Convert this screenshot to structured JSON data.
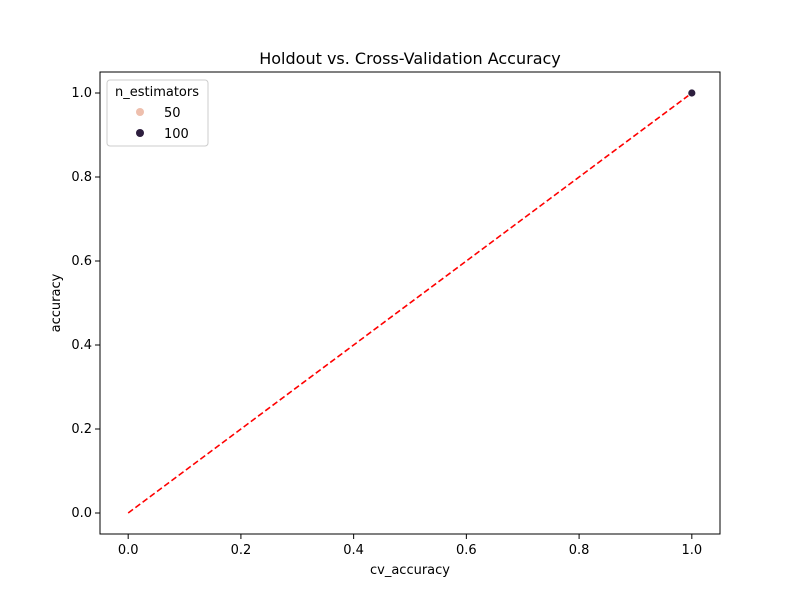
{
  "chart_data": {
    "type": "scatter",
    "title": "Holdout vs. Cross-Validation Accuracy",
    "xlabel": "cv_accuracy",
    "ylabel": "accuracy",
    "xlim": [
      -0.05,
      1.05
    ],
    "ylim": [
      -0.05,
      1.05
    ],
    "x_ticks": [
      0.0,
      0.2,
      0.4,
      0.6,
      0.8,
      1.0
    ],
    "y_ticks": [
      0.0,
      0.2,
      0.4,
      0.6,
      0.8,
      1.0
    ],
    "x_tick_labels": [
      "0.0",
      "0.2",
      "0.4",
      "0.6",
      "0.8",
      "1.0"
    ],
    "y_tick_labels": [
      "0.0",
      "0.2",
      "0.4",
      "0.6",
      "0.8",
      "1.0"
    ],
    "grid": false,
    "legend": {
      "title": "n_estimators",
      "placement": "top-left",
      "entries": [
        {
          "label": "50",
          "color": "#eebfad"
        },
        {
          "label": "100",
          "color": "#2d1e3e"
        }
      ]
    },
    "series": [
      {
        "name": "50",
        "color": "#eebfad",
        "points": [
          {
            "x": 1.0,
            "y": 1.0
          }
        ]
      },
      {
        "name": "100",
        "color": "#2d1e3e",
        "points": [
          {
            "x": 1.0,
            "y": 1.0
          }
        ]
      }
    ],
    "reference_line": {
      "from": [
        0.0,
        0.0
      ],
      "to": [
        1.0,
        1.0
      ],
      "color": "#ff0000",
      "style": "dashed"
    }
  }
}
